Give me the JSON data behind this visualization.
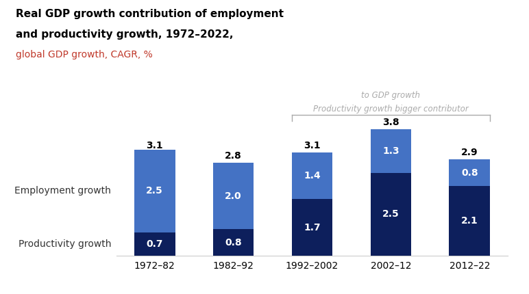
{
  "categories": [
    "1972–82",
    "1982–92",
    "1992–2002",
    "2002–12",
    "2012–22"
  ],
  "productivity": [
    0.7,
    0.8,
    1.7,
    2.5,
    2.1
  ],
  "employment": [
    2.5,
    2.0,
    1.4,
    1.3,
    0.8
  ],
  "totals": [
    3.1,
    2.8,
    3.1,
    3.8,
    2.9
  ],
  "productivity_color": "#0D1F5C",
  "employment_color": "#4472C4",
  "title_line1": "Real GDP growth contribution of employment",
  "title_line2": "and productivity growth, 1972–2022,",
  "title_line3": "global GDP growth, CAGR, %",
  "title_line3_color": "#C0392B",
  "annotation_text_line1": "Productivity growth bigger contributor",
  "annotation_text_line2": "to GDP growth",
  "annotation_color": "#AAAAAA",
  "label_left_employment": "Employment growth",
  "label_left_productivity": "Productivity growth",
  "bar_width": 0.52,
  "ylim_max": 4.6,
  "figsize": [
    7.72,
    4.3
  ],
  "dpi": 100
}
